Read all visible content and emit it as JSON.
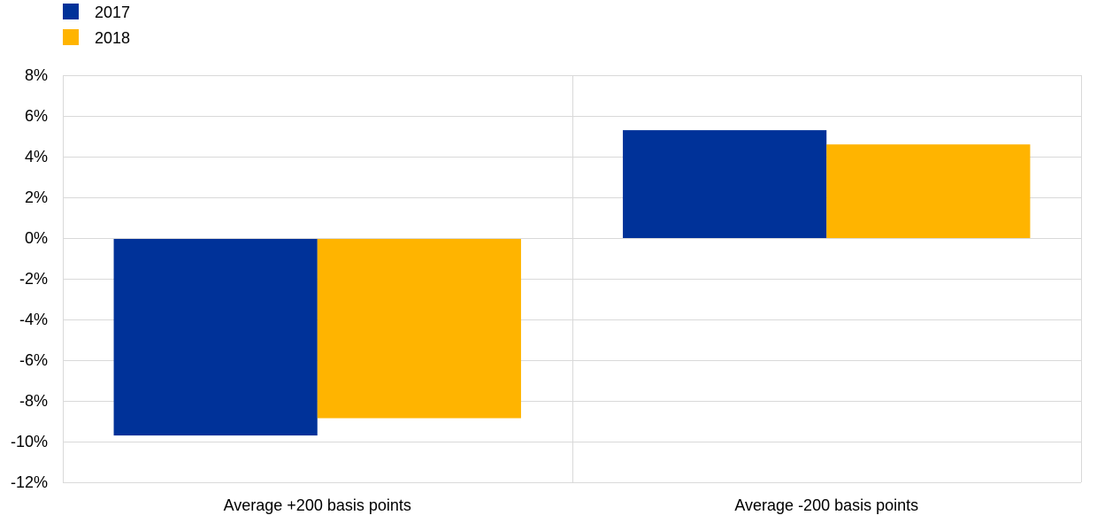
{
  "chart_data": {
    "type": "bar",
    "title": "",
    "xlabel": "",
    "ylabel": "",
    "categories": [
      "Average +200 basis points",
      "Average -200 basis points"
    ],
    "series": [
      {
        "name": "2017",
        "values": [
          -9.7,
          5.3
        ],
        "color": "#003299"
      },
      {
        "name": "2018",
        "values": [
          -8.85,
          4.6
        ],
        "color": "#ffb400"
      }
    ],
    "ylim": [
      -12,
      8
    ],
    "yticks": [
      8,
      6,
      4,
      2,
      0,
      -2,
      -4,
      -6,
      -8,
      -10,
      -12
    ],
    "ytick_labels": [
      "8%",
      "6%",
      "4%",
      "2%",
      "0%",
      "-2%",
      "-4%",
      "-6%",
      "-8%",
      "-10%",
      "-12%"
    ],
    "grid": true,
    "legend_position": "top-left",
    "colors": {
      "grid": "#d9d9d9",
      "axis": "#bfbfbf"
    }
  }
}
